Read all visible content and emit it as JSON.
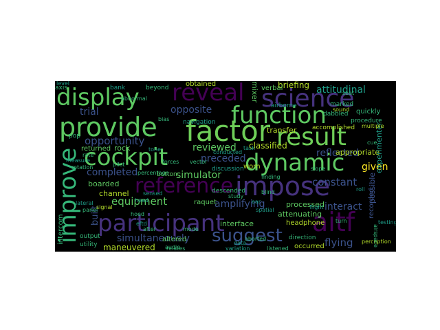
{
  "colors": {
    "background": "#000000",
    "page": "#ffffff",
    "palette": [
      "#3b528b",
      "#440154",
      "#46327e",
      "#21918c",
      "#1f9e89",
      "#35b779",
      "#5ec962",
      "#6ece58",
      "#b5de2b",
      "#fde725",
      "#31688e"
    ]
  },
  "wordcloud": {
    "words": {
      "display": "display",
      "reveal": "reveal",
      "science": "science",
      "provide": "provide",
      "function": "function",
      "factor": "factor",
      "result": "result",
      "cockpit": "cockpit",
      "dynamic": "dynamic",
      "improve": "improve",
      "reference": "reference",
      "impose": "impose",
      "participant": "participant",
      "aitf": "aitf",
      "suggest": "suggest",
      "opposite": "opposite",
      "attitudinal": "attitudinal",
      "opportunity": "opportunity",
      "completed": "completed",
      "preceded": "preceded",
      "reviewed": "reviewed",
      "simulator": "simulator",
      "equipment": "equipment",
      "amplifying": "amplifying",
      "constant": "constant",
      "interact": "interact",
      "flying": "flying",
      "simultaneously": "simultaneously",
      "trial": "trial",
      "given": "given",
      "reflected": "reflected",
      "appropriate": "appropriate",
      "classified": "classified",
      "transfer": "transfer",
      "briefing": "briefing",
      "mixer": "mixer",
      "obtained": "obtained",
      "verbal": "verbal",
      "beyond": "beyond",
      "bank": "bank",
      "navigation": "navigation",
      "rock": "rock",
      "returned": "returned",
      "boarded": "boarded",
      "channel": "channel",
      "button": "button",
      "worn": "worn",
      "raquet": "raquet",
      "processed": "processed",
      "attenuating": "attenuating",
      "interface": "interface",
      "headphone": "headphone",
      "maneuvered": "maneuvered",
      "altered": "altered",
      "occurred": "occurred",
      "direction": "direction",
      "accomplished": "accomplished",
      "ipsilateral": "ipsilateral",
      "quickly": "quickly",
      "procedure": "procedure",
      "experimenter": "experimenter",
      "intercom": "intercom",
      "built": "built",
      "output": "output",
      "utility": "utility",
      "axis": "axis",
      "pop": "pop",
      "possible": "possible",
      "recorded": "recorded",
      "airborne": "airborne",
      "dabbled": "dabbled",
      "marked": "marked",
      "descended": "descended",
      "discussion": "discussion",
      "aborted": "aborted",
      "percentage": "percentage",
      "finding": "finding",
      "testing": "testing",
      "multiple": "multiple",
      "perception": "perception",
      "panel": "panel",
      "after": "after",
      "conducted": "conducted",
      "abnormal": "abnormal",
      "relates": "relates",
      "sound": "sound",
      "airspace": "airspace",
      "sensed": "sensed",
      "forces": "forces",
      "listened": "listened",
      "variation": "variation",
      "hoed": "hoed",
      "measure": "measure",
      "rotation": "rotation",
      "level": "level",
      "signal": "signal",
      "eftd": "eftd",
      "blind": "blind",
      "spatial": "spatial",
      "seat": "seat",
      "flight": "flight",
      "pilot": "pilot",
      "turn": "turn",
      "roll": "roll",
      "study": "study",
      "task": "task",
      "audio": "audio",
      "cue": "cue",
      "lateral": "lateral",
      "vector": "vector",
      "ear": "ear",
      "mode": "mode",
      "head": "head",
      "rate": "rate",
      "tone": "tone",
      "bias": "bias",
      "data": "data",
      "slope": "slope"
    }
  }
}
